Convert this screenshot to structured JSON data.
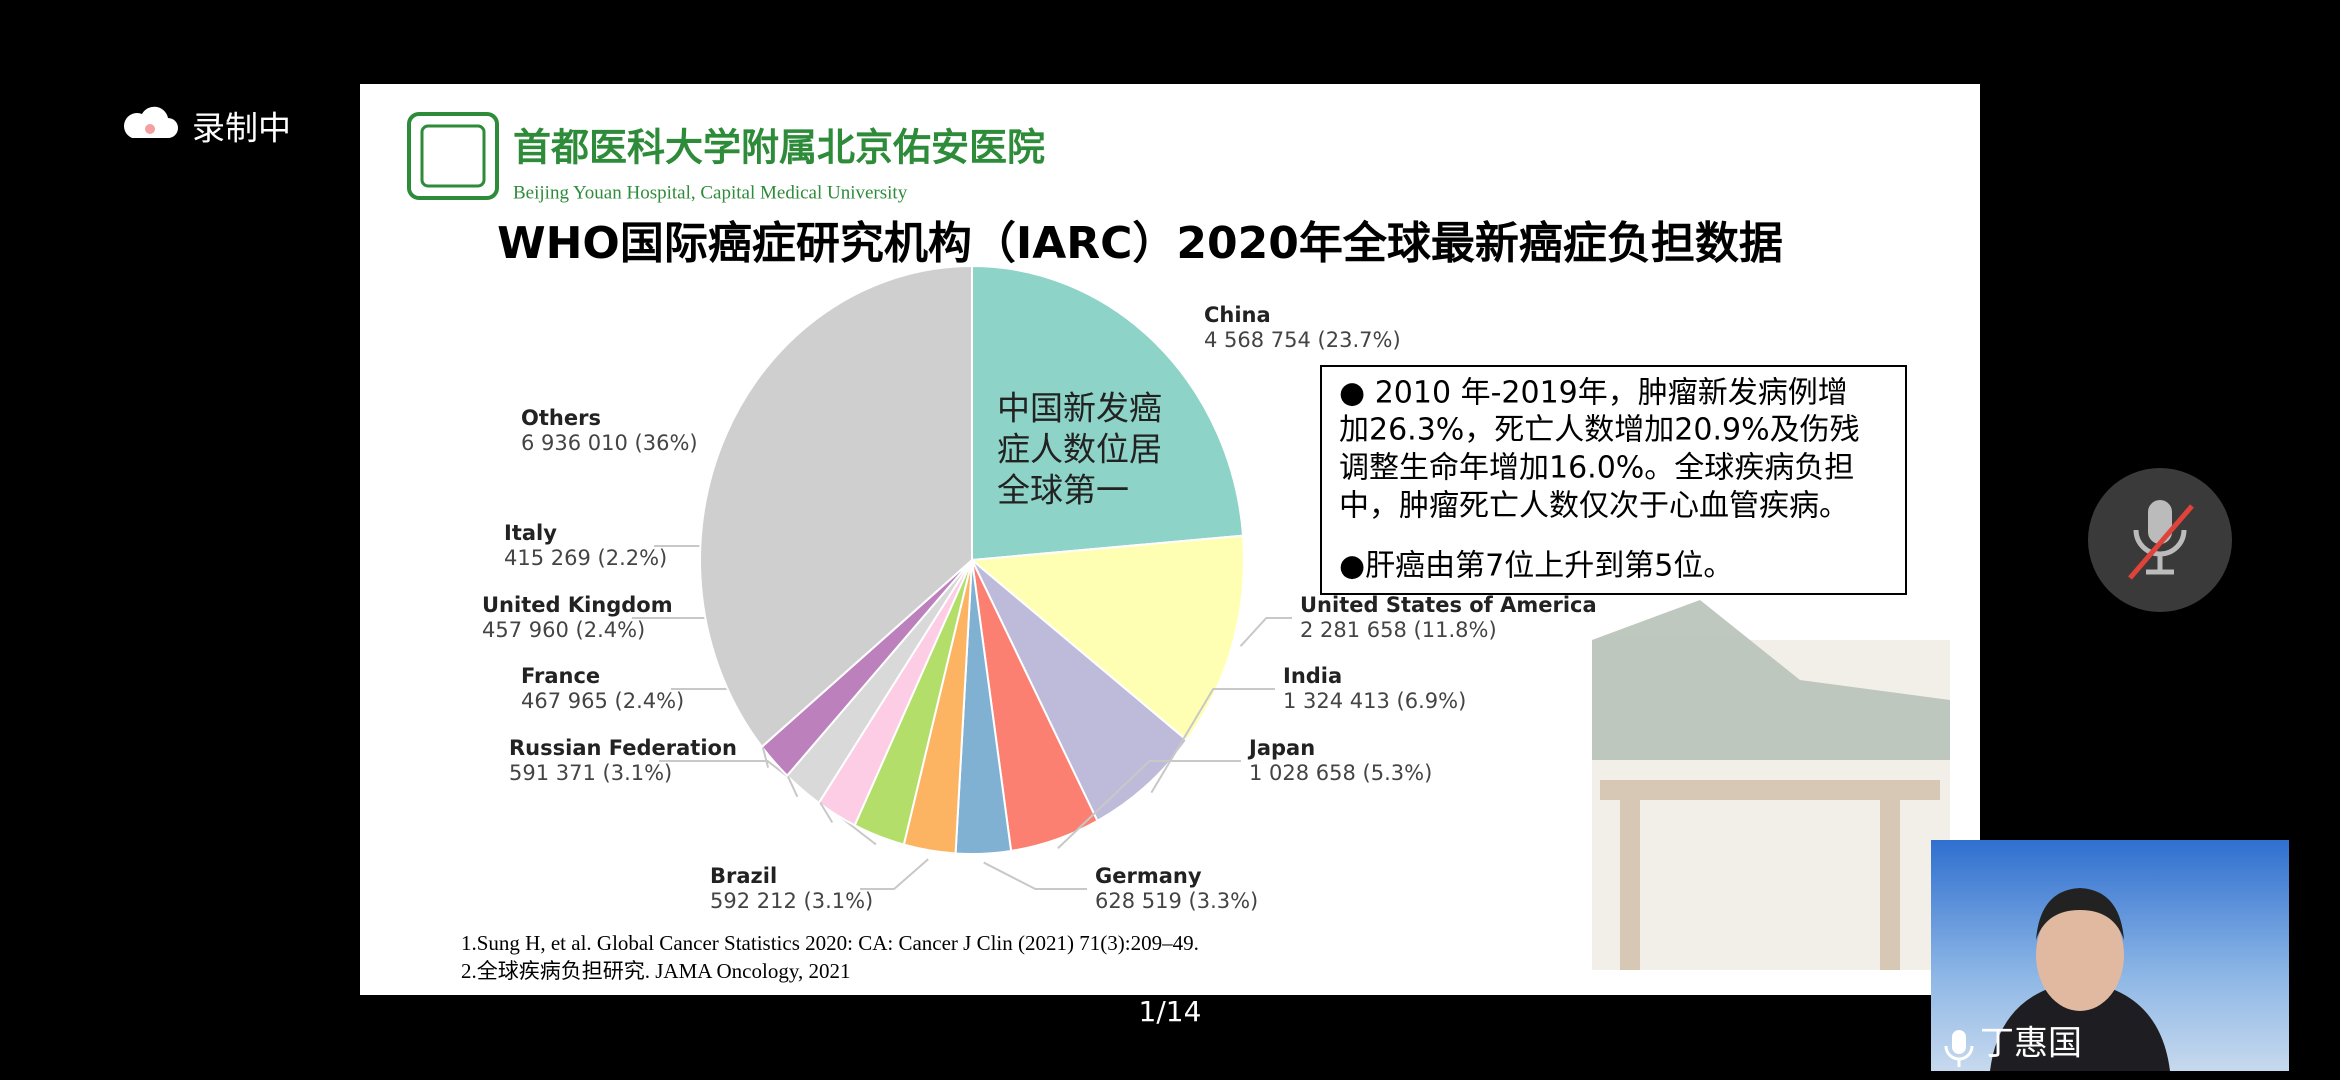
{
  "status_bar": {
    "recording": "录制中"
  },
  "slide": {
    "hospital_name": "首都医科大学附属北京佑安医院",
    "hospital_name_en": "Beijing Youan Hospital, Capital Medical University",
    "title": "WHO国际癌症研究机构（IARC）2020年全球最新癌症负担数据",
    "text_box_lines": [
      "● 2010 年-2019年，肿瘤新发病例增",
      "加26.3%，死亡人数增加20.9%及伤残",
      "调整生命年增加16.0%。全球疾病负担",
      "中，肿瘤死亡人数仅次于心血管疾病。",
      "●肝癌由第7位上升到第5位。"
    ],
    "references": [
      "1.Sung H, et al. Global Cancer Statistics 2020: CA: Cancer J Clin (2021) 71(3):209–49.",
      "2.全球疾病负担研究. JAMA Oncology, 2021"
    ]
  },
  "chart_data": {
    "type": "pie",
    "categories": [
      "China",
      "United States of America",
      "India",
      "Japan",
      "Germany",
      "Brazil",
      "Russian Federation",
      "France",
      "United Kingdom",
      "Italy",
      "Others"
    ],
    "values": [
      4568754,
      2281658,
      1324413,
      1028658,
      628519,
      592212,
      591371,
      467965,
      457960,
      415269,
      6936010
    ],
    "value_labels": [
      "4 568 754 (23.7%)",
      "2 281 658 (11.8%)",
      "1 324 413 (6.9%)",
      "1 028 658 (5.3%)",
      "628 519 (3.3%)",
      "592 212 (3.1%)",
      "591 371 (3.1%)",
      "467 965 (2.4%)",
      "457 960 (2.4%)",
      "415 269 (2.2%)",
      "6 936 010 (36%)"
    ],
    "colors": [
      "#8dd3c7",
      "#ffffb3",
      "#bebada",
      "#fb8072",
      "#80b1d3",
      "#fdb462",
      "#b3de69",
      "#fccde5",
      "#d9d9d9",
      "#bc80bd",
      "#cfcfcf"
    ],
    "annotation_lines": [
      "中国新发癌",
      "症人数位居",
      "全球第一"
    ]
  },
  "page_indicator": "1/14",
  "participant": {
    "name": "丁惠国"
  }
}
